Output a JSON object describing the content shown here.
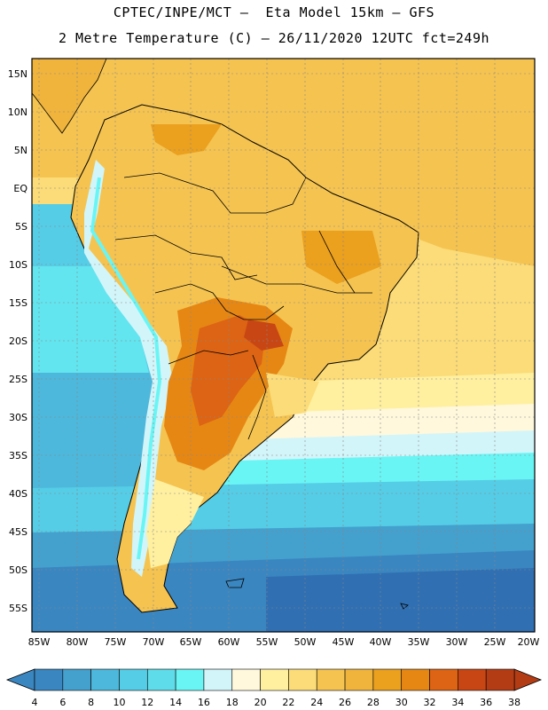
{
  "header": {
    "line1": "CPTEC/INPE/MCT –  Eta Model 15km – GFS",
    "line2": "2 Metre Temperature (C) – 26/11/2020 12UTC fct=249h"
  },
  "map": {
    "lat_labels": [
      "15N",
      "10N",
      "5N",
      "EQ",
      "5S",
      "10S",
      "15S",
      "20S",
      "25S",
      "30S",
      "35S",
      "40S",
      "45S",
      "50S",
      "55S"
    ],
    "lon_labels": [
      "85W",
      "80W",
      "75W",
      "70W",
      "65W",
      "60W",
      "55W",
      "50W",
      "45W",
      "40W",
      "35W",
      "30W",
      "25W",
      "20W"
    ]
  },
  "colorbar": {
    "labels": [
      "4",
      "6",
      "8",
      "10",
      "12",
      "14",
      "16",
      "18",
      "20",
      "22",
      "24",
      "26",
      "28",
      "30",
      "32",
      "34",
      "36",
      "38"
    ],
    "colors": [
      "#2f6fb2",
      "#3a86c0",
      "#44a0cd",
      "#4db8db",
      "#55cde6",
      "#5fdce9",
      "#6af5f5",
      "#d2f5fa",
      "#fff8dc",
      "#fff0a0",
      "#fbdc78",
      "#f5c350",
      "#f0b43c",
      "#eba01e",
      "#e68714",
      "#dc6414",
      "#c84614",
      "#b43c14"
    ]
  }
}
